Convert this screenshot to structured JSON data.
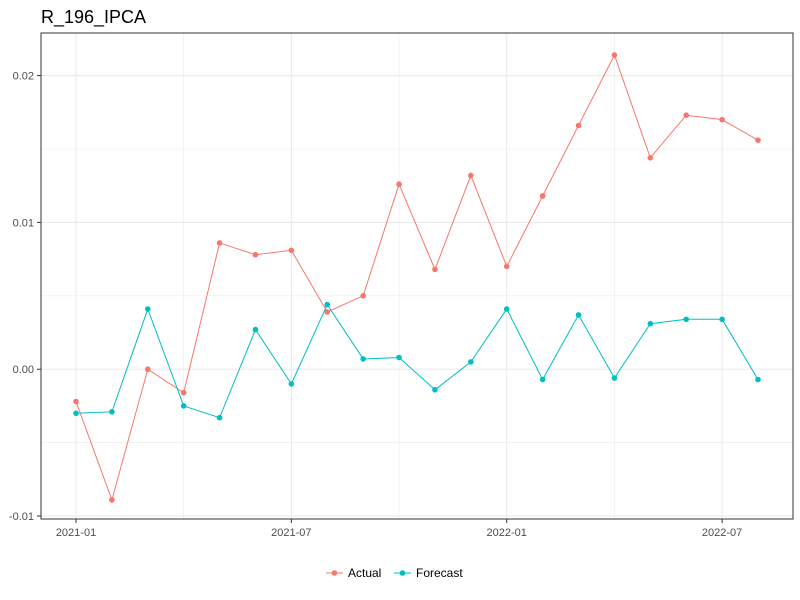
{
  "chart_data": {
    "type": "line",
    "title": "R_196_IPCA",
    "xlabel": "",
    "ylabel": "",
    "x": [
      "2021-01",
      "2021-02",
      "2021-03",
      "2021-04",
      "2021-05",
      "2021-06",
      "2021-07",
      "2021-08",
      "2021-09",
      "2021-10",
      "2021-11",
      "2021-12",
      "2022-01",
      "2022-02",
      "2022-03",
      "2022-04",
      "2022-05",
      "2022-06",
      "2022-07",
      "2022-08"
    ],
    "x_ticks": [
      "2021-01",
      "2021-07",
      "2022-01",
      "2022-07"
    ],
    "y_ticks": [
      -0.01,
      0.0,
      0.01,
      0.02
    ],
    "y_tick_labels": [
      "-0.01",
      "0.00",
      "0.01",
      "0.02"
    ],
    "ylim": [
      -0.0102,
      0.0229
    ],
    "grid": true,
    "legend_position": "bottom",
    "series": [
      {
        "name": "Actual",
        "color": "#F8766D",
        "values": [
          -0.0022,
          -0.0089,
          0.0,
          -0.0016,
          0.0086,
          0.0078,
          0.0081,
          0.0039,
          0.005,
          0.0126,
          0.0068,
          0.0132,
          0.007,
          0.0118,
          0.0166,
          0.0214,
          0.0144,
          0.0173,
          0.017,
          0.0156
        ]
      },
      {
        "name": "Forecast",
        "color": "#00BFC4",
        "values": [
          -0.003,
          -0.0029,
          0.0041,
          -0.0025,
          -0.0033,
          0.0027,
          -0.001,
          0.0044,
          0.0007,
          0.0008,
          -0.0014,
          0.0005,
          0.0041,
          -0.0007,
          0.0037,
          -0.0006,
          0.0031,
          0.0034,
          0.0034,
          -0.0007
        ]
      }
    ]
  }
}
